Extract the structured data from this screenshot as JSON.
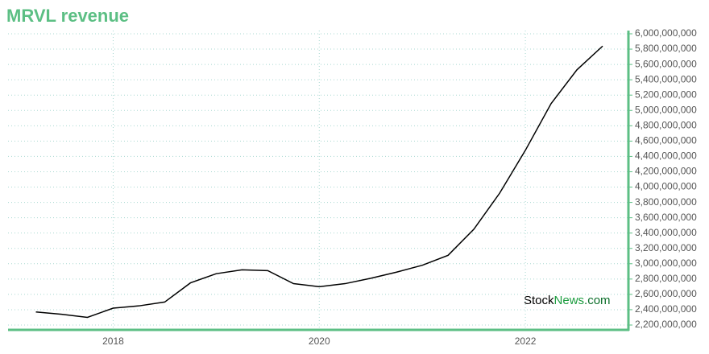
{
  "chart_data": {
    "type": "line",
    "title": "MRVL revenue",
    "x": [
      2017.25,
      2017.5,
      2017.75,
      2018,
      2018.25,
      2018.5,
      2018.75,
      2019,
      2019.25,
      2019.5,
      2019.75,
      2020,
      2020.25,
      2020.5,
      2020.75,
      2021,
      2021.25,
      2021.5,
      2021.75,
      2022,
      2022.25,
      2022.5,
      2022.75
    ],
    "series": [
      {
        "color": "#000000",
        "values": [
          2370000000,
          2340000000,
          2300000000,
          2420000000,
          2450000000,
          2500000000,
          2750000000,
          2870000000,
          2920000000,
          2910000000,
          2740000000,
          2700000000,
          2740000000,
          2810000000,
          2890000000,
          2980000000,
          3110000000,
          3450000000,
          3920000000,
          4480000000,
          5090000000,
          5530000000,
          5840000000
        ]
      }
    ],
    "xlim": [
      2016.98,
      2023.0
    ],
    "xticks": [
      2018,
      2020,
      2022
    ],
    "ylim": [
      2137000000,
      6042000000
    ],
    "yticks": [
      {
        "value": 2200000000,
        "label": "2,200,000,000"
      },
      {
        "value": 2400000000,
        "label": "2,400,000,000"
      },
      {
        "value": 2600000000,
        "label": "2,600,000,000"
      },
      {
        "value": 2800000000,
        "label": "2,800,000,000"
      },
      {
        "value": 3000000000,
        "label": "3,000,000,000"
      },
      {
        "value": 3200000000,
        "label": "3,200,000,000"
      },
      {
        "value": 3400000000,
        "label": "3,400,000,000"
      },
      {
        "value": 3600000000,
        "label": "3,600,000,000"
      },
      {
        "value": 3800000000,
        "label": "3,800,000,000"
      },
      {
        "value": 4000000000,
        "label": "4,000,000,000"
      },
      {
        "value": 4200000000,
        "label": "4,200,000,000"
      },
      {
        "value": 4400000000,
        "label": "4,400,000,000"
      },
      {
        "value": 4600000000,
        "label": "4,600,000,000"
      },
      {
        "value": 4800000000,
        "label": "4,800,000,000"
      },
      {
        "value": 5000000000,
        "label": "5,000,000,000"
      },
      {
        "value": 5200000000,
        "label": "5,200,000,000"
      },
      {
        "value": 5400000000,
        "label": "5,400,000,000"
      },
      {
        "value": 5600000000,
        "label": "5,600,000,000"
      },
      {
        "value": 5800000000,
        "label": "5,800,000,000"
      },
      {
        "value": 6000000000,
        "label": "6,000,000,000"
      }
    ],
    "grid": true,
    "y_axis_side": "right",
    "axis_color": "#5cbf84",
    "watermark": [
      "Stock",
      "News",
      ".com"
    ]
  }
}
